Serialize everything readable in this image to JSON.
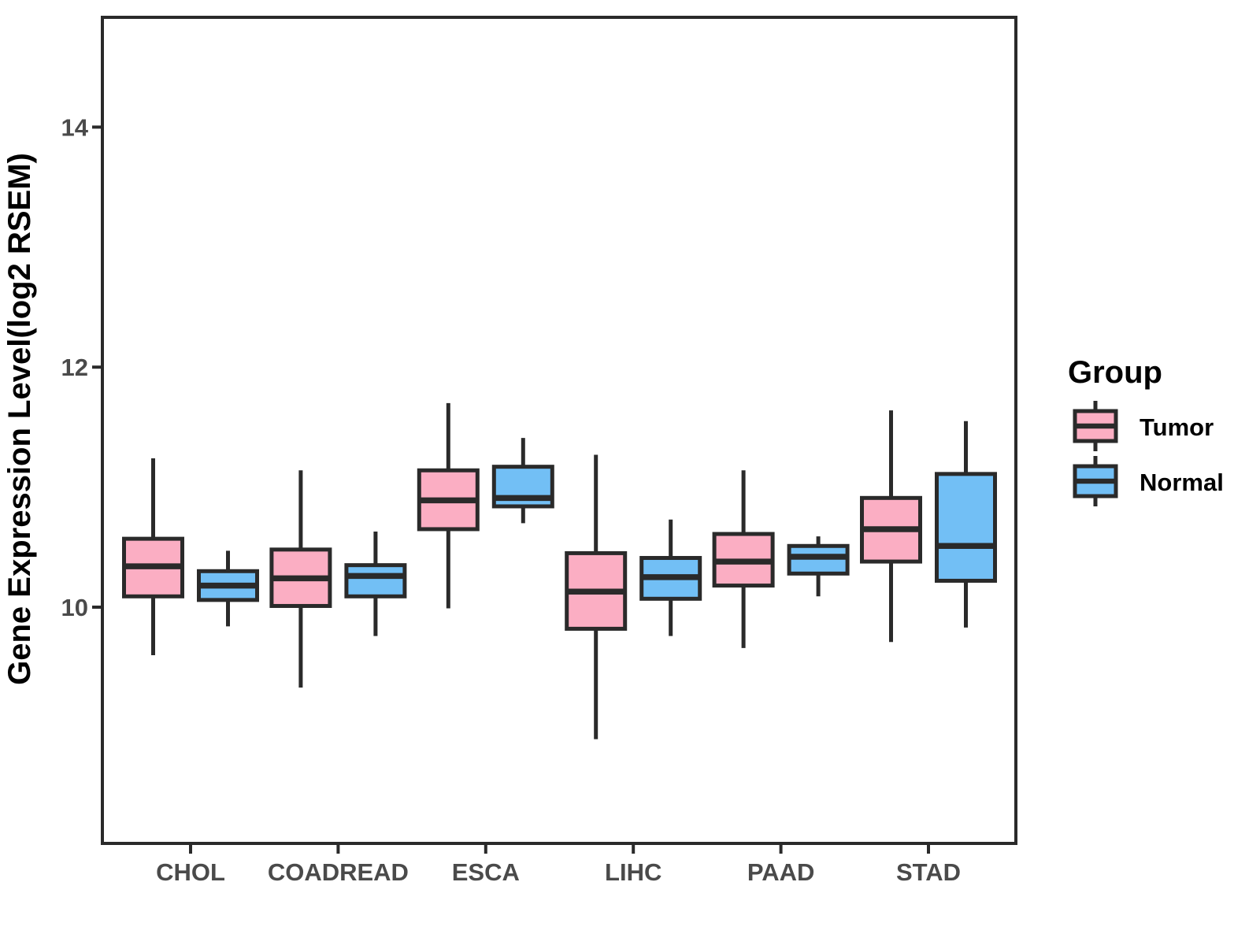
{
  "chart_data": {
    "type": "boxplot",
    "title": "",
    "xlabel": "",
    "ylabel": "Gene Expression Level(log2 RSEM)",
    "categories": [
      "CHOL",
      "COADREAD",
      "ESCA",
      "LIHC",
      "PAAD",
      "STAD"
    ],
    "y_ticks": [
      10,
      12,
      14
    ],
    "ylim": [
      8.03,
      14.92
    ],
    "grid": "off",
    "legend": {
      "title": "Group",
      "position": "right",
      "items": [
        {
          "label": "Tumor",
          "color": "#FBAEC3"
        },
        {
          "label": "Normal",
          "color": "#72BFF5"
        }
      ]
    },
    "series": [
      {
        "name": "Tumor",
        "color": "#FBAEC3",
        "boxes": [
          {
            "category": "CHOL",
            "low": 9.6,
            "q1": 10.09,
            "median": 10.34,
            "q3": 10.57,
            "high": 11.24
          },
          {
            "category": "COADREAD",
            "low": 9.33,
            "q1": 10.01,
            "median": 10.24,
            "q3": 10.48,
            "high": 11.14
          },
          {
            "category": "ESCA",
            "low": 9.99,
            "q1": 10.65,
            "median": 10.89,
            "q3": 11.14,
            "high": 11.7
          },
          {
            "category": "LIHC",
            "low": 8.9,
            "q1": 9.82,
            "median": 10.13,
            "q3": 10.45,
            "high": 11.27
          },
          {
            "category": "PAAD",
            "low": 9.66,
            "q1": 10.18,
            "median": 10.38,
            "q3": 10.61,
            "high": 11.14
          },
          {
            "category": "STAD",
            "low": 9.71,
            "q1": 10.38,
            "median": 10.65,
            "q3": 10.91,
            "high": 11.64
          }
        ]
      },
      {
        "name": "Normal",
        "color": "#72BFF5",
        "boxes": [
          {
            "category": "CHOL",
            "low": 9.84,
            "q1": 10.06,
            "median": 10.18,
            "q3": 10.3,
            "high": 10.47
          },
          {
            "category": "COADREAD",
            "low": 9.76,
            "q1": 10.09,
            "median": 10.26,
            "q3": 10.35,
            "high": 10.63
          },
          {
            "category": "ESCA",
            "low": 10.7,
            "q1": 10.84,
            "median": 10.91,
            "q3": 11.17,
            "high": 11.41
          },
          {
            "category": "LIHC",
            "low": 9.76,
            "q1": 10.07,
            "median": 10.25,
            "q3": 10.41,
            "high": 10.73
          },
          {
            "category": "PAAD",
            "low": 10.09,
            "q1": 10.28,
            "median": 10.42,
            "q3": 10.51,
            "high": 10.59
          },
          {
            "category": "STAD",
            "low": 9.83,
            "q1": 10.22,
            "median": 10.51,
            "q3": 11.11,
            "high": 11.55
          }
        ]
      }
    ],
    "colors": {
      "box_stroke": "#2a2a2a",
      "axis": "#2a2a2a",
      "tick_label": "#4a4a4a",
      "background": "#ffffff"
    }
  }
}
